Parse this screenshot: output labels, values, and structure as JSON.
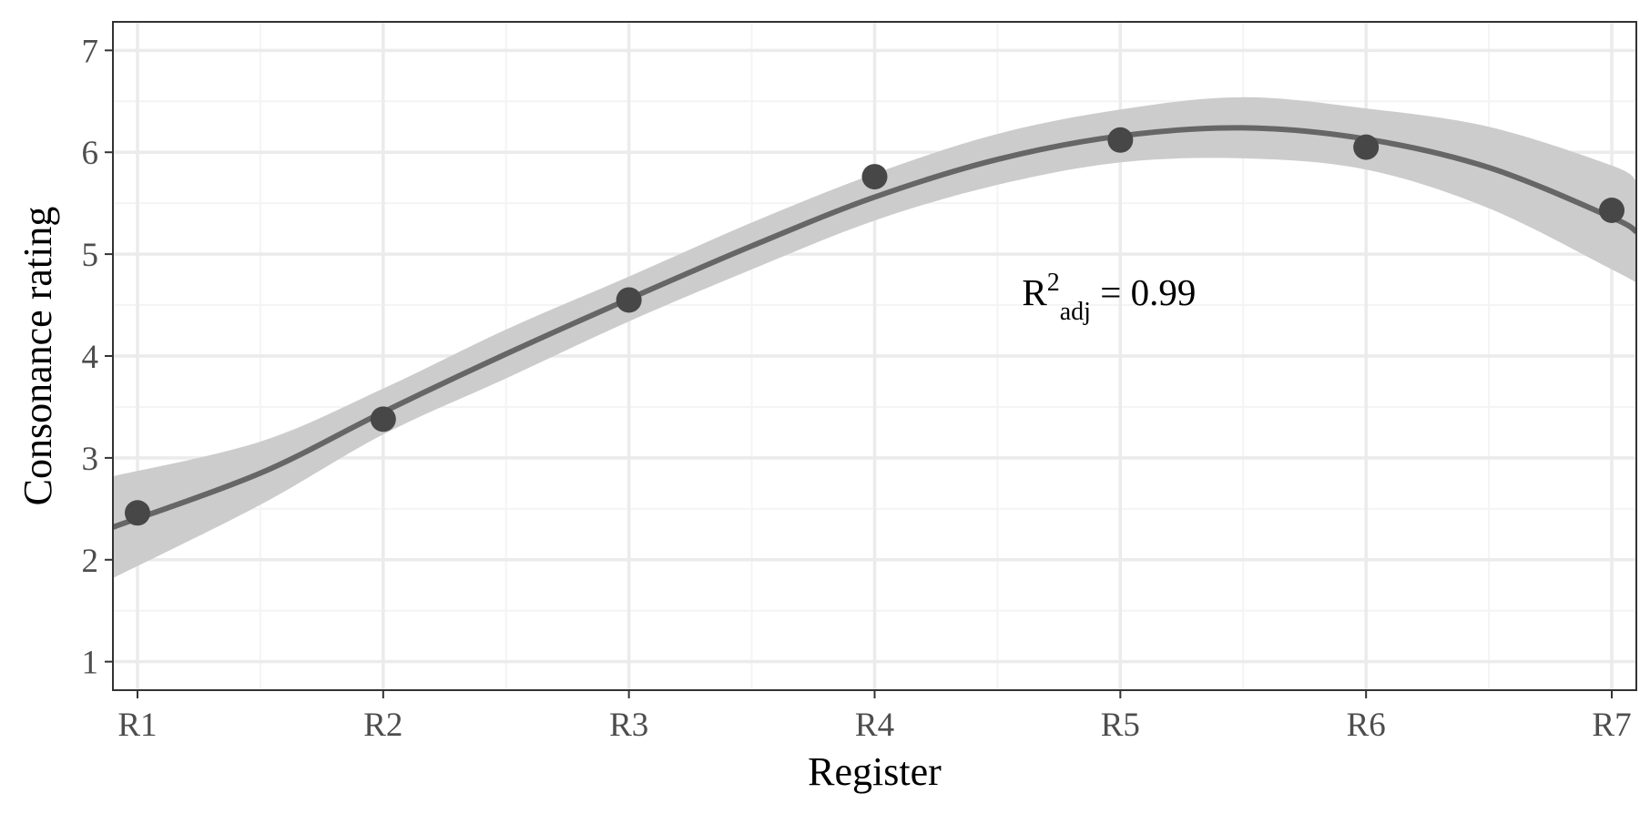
{
  "chart_data": {
    "type": "scatter",
    "xlabel": "Register",
    "ylabel": "Consonance rating",
    "categories": [
      "R1",
      "R2",
      "R3",
      "R4",
      "R5",
      "R6",
      "R7"
    ],
    "x": [
      1,
      2,
      3,
      4,
      5,
      6,
      7
    ],
    "values": [
      2.46,
      3.38,
      4.55,
      5.76,
      6.12,
      6.05,
      5.43
    ],
    "yticks": [
      "1",
      "2",
      "3",
      "4",
      "5",
      "6",
      "7"
    ],
    "ylim": [
      0.72,
      7.28
    ],
    "xlim": [
      0.9,
      7.1
    ],
    "grid": true,
    "fit": {
      "type": "smooth",
      "x": [
        0.9,
        1.5,
        2,
        2.5,
        3,
        3.5,
        4,
        4.5,
        5,
        5.5,
        6,
        6.5,
        7,
        7.1
      ],
      "y": [
        2.32,
        2.85,
        3.45,
        4.02,
        4.56,
        5.08,
        5.56,
        5.93,
        6.16,
        6.24,
        6.13,
        5.85,
        5.36,
        5.22
      ],
      "ci_low": [
        1.82,
        2.54,
        3.23,
        3.78,
        4.34,
        4.85,
        5.33,
        5.68,
        5.9,
        5.94,
        5.83,
        5.45,
        4.85,
        4.72
      ],
      "ci_high": [
        2.82,
        3.16,
        3.68,
        4.26,
        4.78,
        5.31,
        5.79,
        6.18,
        6.42,
        6.54,
        6.43,
        6.25,
        5.87,
        5.72
      ]
    },
    "annotation": {
      "base": "R",
      "superscript": "2",
      "subscript": "adj",
      "rest": " = 0.99",
      "x": 4.6,
      "y": 4.5
    },
    "colors": {
      "points": "#474747",
      "line": "#666666",
      "ribbon": "#cccccc",
      "grid_major": "#ebebeb",
      "grid_minor": "#f4f4f4",
      "panel_border": "#333333"
    }
  }
}
